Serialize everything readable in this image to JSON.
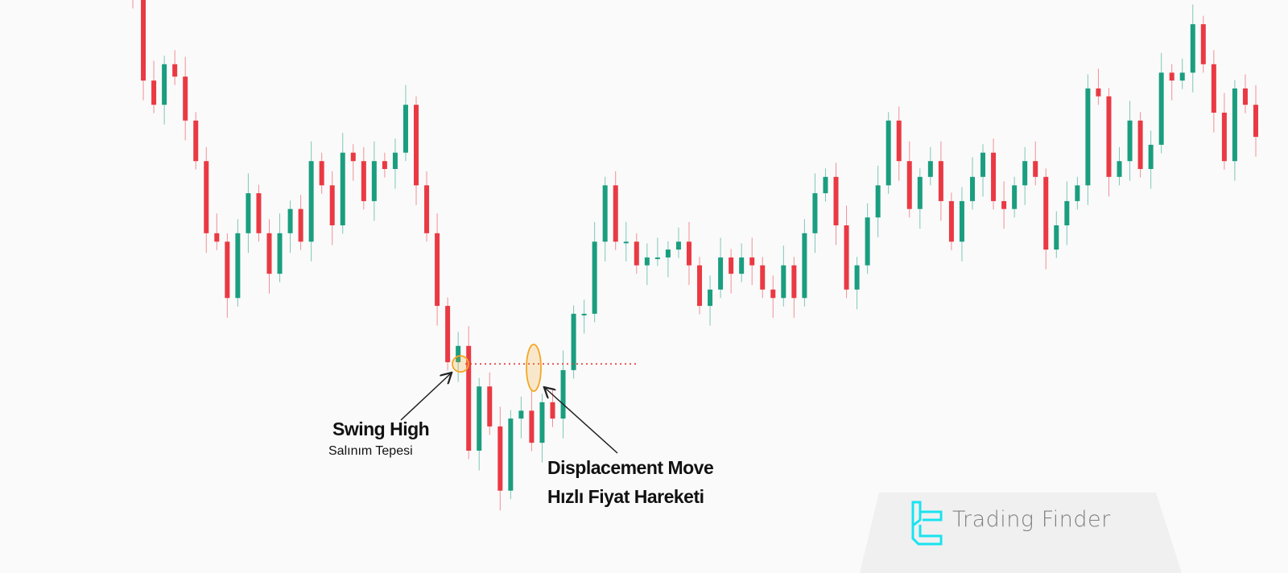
{
  "chart_data": {
    "type": "candlestick",
    "title": "",
    "xlabel": "",
    "ylabel": "",
    "grid": false,
    "up_color": "#1a9e7f",
    "down_color": "#ea3943",
    "close": [
      100,
      85.7,
      81.4,
      88.6,
      86.4,
      78.6,
      71.4,
      58.6,
      57.1,
      47.1,
      58.6,
      65.7,
      58.6,
      51.4,
      58.6,
      62.9,
      57.1,
      71.4,
      67.1,
      60,
      72.9,
      71.4,
      64.3,
      71.4,
      70,
      72.9,
      81.4,
      67.1,
      58.6,
      45.7,
      35.7,
      38.6,
      20,
      31.4,
      24.3,
      12.9,
      25.7,
      27.1,
      21.4,
      28.6,
      25.7,
      34.3,
      44.3,
      44.3,
      57.1,
      67.1,
      57.1,
      57.1,
      52.9,
      54.3,
      54.3,
      55.7,
      57.1,
      52.9,
      45.7,
      48.6,
      54.3,
      51.4,
      54.3,
      52.9,
      48.6,
      47.1,
      52.9,
      47.1,
      58.6,
      65.7,
      68.6,
      60,
      48.6,
      52.9,
      61.4,
      67.1,
      78.6,
      71.4,
      62.9,
      68.6,
      71.4,
      64.3,
      57.1,
      64.3,
      68.6,
      72.9,
      64.3,
      62.9,
      67.1,
      71.4,
      68.6,
      55.7,
      60,
      64.3,
      67.1,
      84.3,
      82.9,
      68.6,
      71.4,
      78.6,
      70,
      74.3,
      87.1,
      85.7,
      87.1,
      95.7,
      88.6,
      80,
      71.4,
      84.3,
      81.4,
      75.7
    ],
    "swing_high_level": 35.4,
    "annotations": {
      "swing_high": {
        "title": "Swing High",
        "subtitle": "Salınım Tepesi"
      },
      "displacement": {
        "title": "Displacement Move",
        "subtitle": "Hızlı Fiyat Hareketi"
      }
    },
    "highlight_color": "#f5a623",
    "level_line_color": "#e53935"
  },
  "brand": {
    "name": "Trading Finder",
    "icon_color": "#19e3f0"
  }
}
